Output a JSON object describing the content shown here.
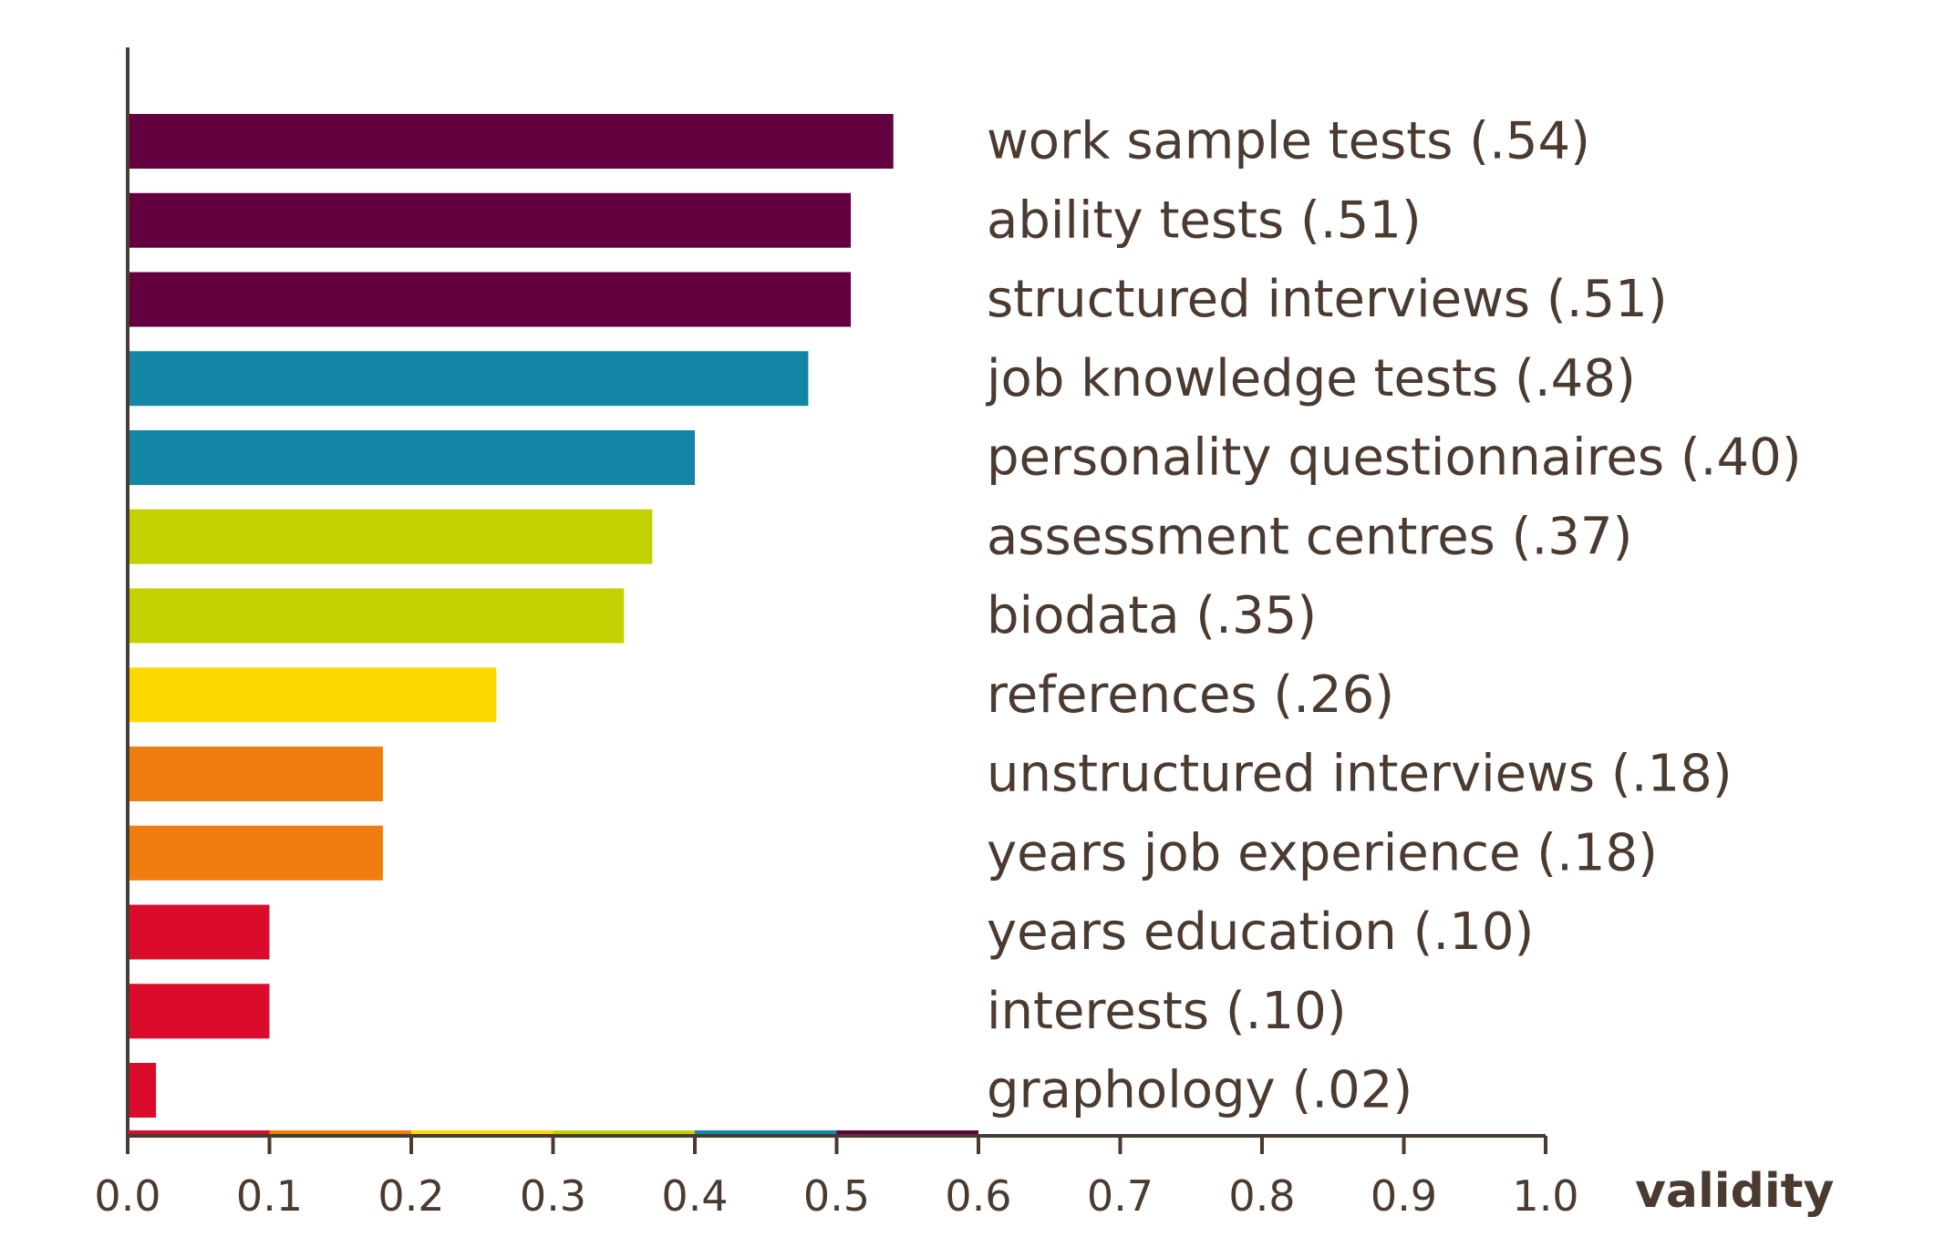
{
  "chart_data": {
    "type": "bar",
    "orientation": "horizontal",
    "xlabel": "validity",
    "xlim": [
      0.0,
      1.0
    ],
    "x_ticks": [
      "0.0",
      "0.1",
      "0.2",
      "0.3",
      "0.4",
      "0.5",
      "0.6",
      "0.7",
      "0.8",
      "0.9",
      "1.0"
    ],
    "grid": false,
    "categories": [
      "work sample tests (.54)",
      "ability tests (.51)",
      "structured interviews (.51)",
      "job knowledge tests (.48)",
      "personality questionnaires (.40)",
      "assessment centres (.37)",
      "biodata (.35)",
      "references (.26)",
      "unstructured interviews (.18)",
      "years job experience (.18)",
      "years education (.10)",
      "interests (.10)",
      "graphology (.02)"
    ],
    "values": [
      0.54,
      0.51,
      0.51,
      0.48,
      0.4,
      0.37,
      0.35,
      0.26,
      0.18,
      0.18,
      0.1,
      0.1,
      0.02
    ],
    "bar_colors": [
      "#630040",
      "#630040",
      "#630040",
      "#1386a6",
      "#1386a6",
      "#c3d100",
      "#c3d100",
      "#fdd800",
      "#ef7d0f",
      "#ef7d0f",
      "#db0b2c",
      "#db0b2c",
      "#db0b2c"
    ],
    "axis_band": [
      {
        "from": 0.0,
        "to": 0.1,
        "color": "#db0b2c"
      },
      {
        "from": 0.1,
        "to": 0.2,
        "color": "#ef7d0f"
      },
      {
        "from": 0.2,
        "to": 0.3,
        "color": "#fdd800"
      },
      {
        "from": 0.3,
        "to": 0.4,
        "color": "#c3d100"
      },
      {
        "from": 0.4,
        "to": 0.5,
        "color": "#1386a6"
      },
      {
        "from": 0.5,
        "to": 0.6,
        "color": "#630040"
      }
    ],
    "axis_color": "#4b3a2f"
  }
}
